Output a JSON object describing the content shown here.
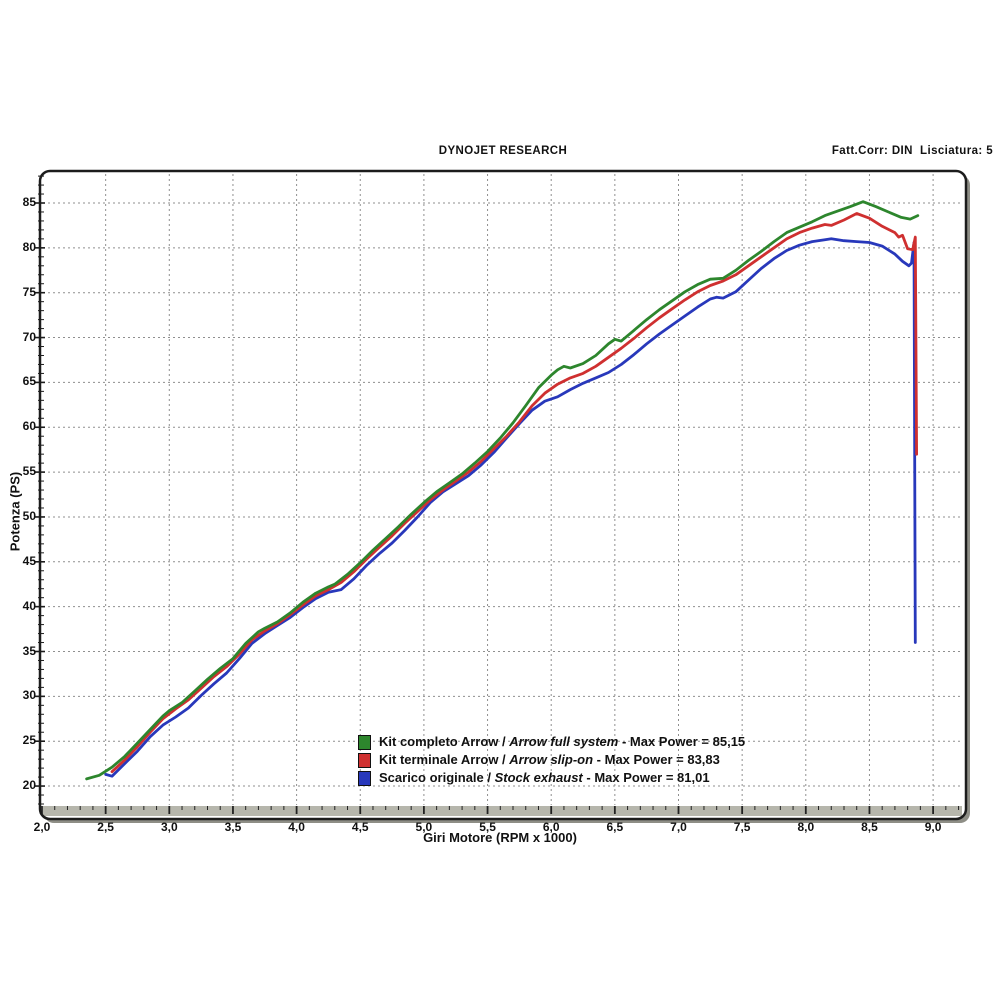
{
  "header": {
    "title": "DYNOJET RESEARCH",
    "correction": "Fatt.Corr: DIN  Lisciatura: 5"
  },
  "axes": {
    "x_label": "Giri Motore (RPM x 1000)",
    "y_label": "Potenza (PS)"
  },
  "legend": {
    "items": [
      {
        "name": "Kit completo Arrow / ",
        "name_en": "Arrow full system",
        "tail": " - Max Power = 85,15"
      },
      {
        "name": "Kit terminale Arrow / ",
        "name_en": "Arrow slip-on",
        "tail": " - Max Power = 83,83"
      },
      {
        "name": "Scarico originale / ",
        "name_en": "Stock exhaust",
        "tail": " - Max Power = 81,01"
      }
    ]
  },
  "chart_data": {
    "type": "line",
    "title": "DYNOJET RESEARCH",
    "xlabel": "Giri Motore (RPM x 1000)",
    "ylabel": "Potenza (PS)",
    "xlim": [
      2.0,
      9.25
    ],
    "ylim": [
      17.5,
      88.5
    ],
    "x_major_step": 0.5,
    "x_minor_step": 0.1,
    "y_major_step": 5,
    "y_minor_step": 1,
    "grid": "dashed-gray",
    "legend_position": "bottom-center-inside",
    "grid_color": "#8f8f8f",
    "band_color": "#b6b6ac",
    "frame_color": "#1c1c1c",
    "shadow_color": "#8e8e86",
    "x_ticks": [
      {
        "v": 2.0,
        "label": "2,0"
      },
      {
        "v": 2.5,
        "label": "2,5"
      },
      {
        "v": 3.0,
        "label": "3,0"
      },
      {
        "v": 3.5,
        "label": "3,5"
      },
      {
        "v": 4.0,
        "label": "4,0"
      },
      {
        "v": 4.5,
        "label": "4,5"
      },
      {
        "v": 5.0,
        "label": "5,0"
      },
      {
        "v": 5.5,
        "label": "5,5"
      },
      {
        "v": 6.0,
        "label": "6,0"
      },
      {
        "v": 6.5,
        "label": "6,5"
      },
      {
        "v": 7.0,
        "label": "7,0"
      },
      {
        "v": 7.5,
        "label": "7,5"
      },
      {
        "v": 8.0,
        "label": "8,0"
      },
      {
        "v": 8.5,
        "label": "8,5"
      },
      {
        "v": 9.0,
        "label": "9,0"
      }
    ],
    "y_ticks": [
      {
        "v": 20,
        "label": "20"
      },
      {
        "v": 25,
        "label": "25"
      },
      {
        "v": 30,
        "label": "30"
      },
      {
        "v": 35,
        "label": "35"
      },
      {
        "v": 40,
        "label": "40"
      },
      {
        "v": 45,
        "label": "45"
      },
      {
        "v": 50,
        "label": "50"
      },
      {
        "v": 55,
        "label": "55"
      },
      {
        "v": 60,
        "label": "60"
      },
      {
        "v": 65,
        "label": "65"
      },
      {
        "v": 70,
        "label": "70"
      },
      {
        "v": 75,
        "label": "75"
      },
      {
        "v": 80,
        "label": "80"
      },
      {
        "v": 85,
        "label": "85"
      }
    ],
    "series": [
      {
        "name": "Kit completo Arrow / Arrow full system",
        "max_power": "85,15",
        "color": "#2d862d",
        "points": [
          [
            2.35,
            20.8
          ],
          [
            2.45,
            21.2
          ],
          [
            2.55,
            22.1
          ],
          [
            2.65,
            23.3
          ],
          [
            2.75,
            24.8
          ],
          [
            2.85,
            26.3
          ],
          [
            2.95,
            27.8
          ],
          [
            3.0,
            28.4
          ],
          [
            3.1,
            29.3
          ],
          [
            3.2,
            30.6
          ],
          [
            3.3,
            31.9
          ],
          [
            3.4,
            33.1
          ],
          [
            3.5,
            34.2
          ],
          [
            3.6,
            35.9
          ],
          [
            3.7,
            37.2
          ],
          [
            3.75,
            37.6
          ],
          [
            3.85,
            38.3
          ],
          [
            3.95,
            39.3
          ],
          [
            4.05,
            40.5
          ],
          [
            4.15,
            41.5
          ],
          [
            4.25,
            42.2
          ],
          [
            4.3,
            42.5
          ],
          [
            4.4,
            43.6
          ],
          [
            4.5,
            44.9
          ],
          [
            4.6,
            46.3
          ],
          [
            4.7,
            47.6
          ],
          [
            4.8,
            48.9
          ],
          [
            4.9,
            50.3
          ],
          [
            5.0,
            51.6
          ],
          [
            5.1,
            52.8
          ],
          [
            5.2,
            53.8
          ],
          [
            5.3,
            54.8
          ],
          [
            5.4,
            56.0
          ],
          [
            5.5,
            57.3
          ],
          [
            5.6,
            58.8
          ],
          [
            5.7,
            60.5
          ],
          [
            5.8,
            62.4
          ],
          [
            5.9,
            64.4
          ],
          [
            6.0,
            65.8
          ],
          [
            6.05,
            66.4
          ],
          [
            6.1,
            66.8
          ],
          [
            6.15,
            66.6
          ],
          [
            6.25,
            67.1
          ],
          [
            6.35,
            68.0
          ],
          [
            6.45,
            69.3
          ],
          [
            6.5,
            69.8
          ],
          [
            6.55,
            69.6
          ],
          [
            6.65,
            70.8
          ],
          [
            6.75,
            72.0
          ],
          [
            6.85,
            73.1
          ],
          [
            6.95,
            74.1
          ],
          [
            7.05,
            75.1
          ],
          [
            7.15,
            75.9
          ],
          [
            7.25,
            76.5
          ],
          [
            7.35,
            76.6
          ],
          [
            7.45,
            77.5
          ],
          [
            7.55,
            78.6
          ],
          [
            7.65,
            79.6
          ],
          [
            7.75,
            80.7
          ],
          [
            7.85,
            81.7
          ],
          [
            7.95,
            82.3
          ],
          [
            8.05,
            82.9
          ],
          [
            8.15,
            83.6
          ],
          [
            8.25,
            84.1
          ],
          [
            8.35,
            84.6
          ],
          [
            8.45,
            85.15
          ],
          [
            8.55,
            84.6
          ],
          [
            8.65,
            84.0
          ],
          [
            8.75,
            83.4
          ],
          [
            8.82,
            83.2
          ],
          [
            8.88,
            83.6
          ]
        ]
      },
      {
        "name": "Kit terminale Arrow / Arrow slip-on",
        "max_power": "83,83",
        "color": "#cf3030",
        "points": [
          [
            2.55,
            21.6
          ],
          [
            2.65,
            22.9
          ],
          [
            2.75,
            24.4
          ],
          [
            2.85,
            26.0
          ],
          [
            2.95,
            27.5
          ],
          [
            3.05,
            28.6
          ],
          [
            3.15,
            29.6
          ],
          [
            3.25,
            30.9
          ],
          [
            3.35,
            32.2
          ],
          [
            3.45,
            33.3
          ],
          [
            3.55,
            34.7
          ],
          [
            3.65,
            36.3
          ],
          [
            3.75,
            37.3
          ],
          [
            3.85,
            38.1
          ],
          [
            3.95,
            39.1
          ],
          [
            4.05,
            40.2
          ],
          [
            4.15,
            41.2
          ],
          [
            4.25,
            41.9
          ],
          [
            4.35,
            42.7
          ],
          [
            4.45,
            43.9
          ],
          [
            4.55,
            45.3
          ],
          [
            4.65,
            46.6
          ],
          [
            4.75,
            47.9
          ],
          [
            4.85,
            49.3
          ],
          [
            4.95,
            50.6
          ],
          [
            5.05,
            51.9
          ],
          [
            5.15,
            53.0
          ],
          [
            5.25,
            54.0
          ],
          [
            5.35,
            55.0
          ],
          [
            5.45,
            56.2
          ],
          [
            5.55,
            57.6
          ],
          [
            5.65,
            59.0
          ],
          [
            5.75,
            60.6
          ],
          [
            5.85,
            62.4
          ],
          [
            5.95,
            63.8
          ],
          [
            6.05,
            64.8
          ],
          [
            6.15,
            65.5
          ],
          [
            6.25,
            66.0
          ],
          [
            6.35,
            66.8
          ],
          [
            6.45,
            67.8
          ],
          [
            6.55,
            68.8
          ],
          [
            6.65,
            69.9
          ],
          [
            6.75,
            71.1
          ],
          [
            6.85,
            72.2
          ],
          [
            6.95,
            73.2
          ],
          [
            7.05,
            74.2
          ],
          [
            7.15,
            75.1
          ],
          [
            7.25,
            75.8
          ],
          [
            7.35,
            76.3
          ],
          [
            7.45,
            77.0
          ],
          [
            7.55,
            78.0
          ],
          [
            7.65,
            79.0
          ],
          [
            7.75,
            80.0
          ],
          [
            7.85,
            81.0
          ],
          [
            7.95,
            81.7
          ],
          [
            8.05,
            82.2
          ],
          [
            8.15,
            82.6
          ],
          [
            8.2,
            82.5
          ],
          [
            8.3,
            83.1
          ],
          [
            8.4,
            83.83
          ],
          [
            8.5,
            83.3
          ],
          [
            8.6,
            82.4
          ],
          [
            8.7,
            81.7
          ],
          [
            8.73,
            81.2
          ],
          [
            8.76,
            81.4
          ],
          [
            8.8,
            79.9
          ],
          [
            8.84,
            79.8
          ],
          [
            8.86,
            81.2
          ],
          [
            8.87,
            57.0
          ]
        ]
      },
      {
        "name": "Scarico originale / Stock exhaust",
        "max_power": "81,01",
        "color": "#2838bb",
        "points": [
          [
            2.5,
            21.3
          ],
          [
            2.55,
            21.1
          ],
          [
            2.65,
            22.5
          ],
          [
            2.75,
            23.9
          ],
          [
            2.85,
            25.5
          ],
          [
            2.95,
            26.8
          ],
          [
            3.05,
            27.7
          ],
          [
            3.15,
            28.7
          ],
          [
            3.25,
            30.1
          ],
          [
            3.35,
            31.4
          ],
          [
            3.45,
            32.6
          ],
          [
            3.55,
            34.2
          ],
          [
            3.65,
            35.9
          ],
          [
            3.75,
            37.0
          ],
          [
            3.85,
            37.9
          ],
          [
            3.95,
            38.8
          ],
          [
            4.05,
            39.9
          ],
          [
            4.15,
            40.9
          ],
          [
            4.25,
            41.6
          ],
          [
            4.35,
            41.9
          ],
          [
            4.45,
            43.1
          ],
          [
            4.55,
            44.6
          ],
          [
            4.65,
            45.9
          ],
          [
            4.75,
            47.1
          ],
          [
            4.85,
            48.5
          ],
          [
            4.95,
            50.0
          ],
          [
            5.05,
            51.6
          ],
          [
            5.15,
            52.8
          ],
          [
            5.25,
            53.7
          ],
          [
            5.35,
            54.6
          ],
          [
            5.45,
            55.8
          ],
          [
            5.55,
            57.2
          ],
          [
            5.65,
            58.8
          ],
          [
            5.75,
            60.4
          ],
          [
            5.85,
            61.9
          ],
          [
            5.95,
            62.9
          ],
          [
            6.05,
            63.4
          ],
          [
            6.15,
            64.2
          ],
          [
            6.25,
            64.9
          ],
          [
            6.35,
            65.5
          ],
          [
            6.45,
            66.1
          ],
          [
            6.55,
            67.0
          ],
          [
            6.65,
            68.1
          ],
          [
            6.75,
            69.3
          ],
          [
            6.85,
            70.4
          ],
          [
            6.95,
            71.4
          ],
          [
            7.05,
            72.4
          ],
          [
            7.15,
            73.4
          ],
          [
            7.25,
            74.3
          ],
          [
            7.3,
            74.5
          ],
          [
            7.35,
            74.4
          ],
          [
            7.45,
            75.1
          ],
          [
            7.55,
            76.4
          ],
          [
            7.65,
            77.7
          ],
          [
            7.75,
            78.8
          ],
          [
            7.85,
            79.7
          ],
          [
            7.95,
            80.3
          ],
          [
            8.05,
            80.7
          ],
          [
            8.15,
            80.9
          ],
          [
            8.2,
            81.01
          ],
          [
            8.3,
            80.8
          ],
          [
            8.4,
            80.7
          ],
          [
            8.5,
            80.6
          ],
          [
            8.6,
            80.2
          ],
          [
            8.7,
            79.3
          ],
          [
            8.76,
            78.5
          ],
          [
            8.81,
            78.0
          ],
          [
            8.83,
            78.3
          ],
          [
            8.85,
            80.6
          ],
          [
            8.86,
            36.0
          ]
        ]
      }
    ]
  }
}
